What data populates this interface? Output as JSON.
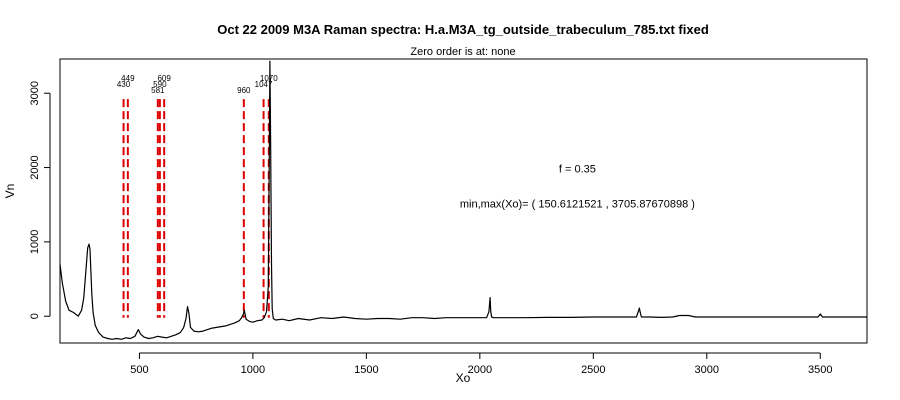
{
  "chart_data": {
    "type": "line",
    "title": "Oct 22 2009 M3A Raman spectra: H.a.M3A_tg_outside_trabeculum_785.txt fixed",
    "subtitle": "Zero order is at:  none",
    "xlabel": "Xo",
    "ylabel": "Vn",
    "xlim": [
      150,
      3706
    ],
    "ylim": [
      -360,
      3460
    ],
    "x_ticks": [
      500,
      1000,
      1500,
      2000,
      2500,
      3000,
      3500
    ],
    "y_ticks": [
      0,
      1000,
      2000,
      3000
    ],
    "grid": false,
    "line_color": "#000000",
    "peak_line_color": "#dd0000",
    "annotations": [
      {
        "text": "f =  0.35",
        "x": 2430,
        "y": 1930
      },
      {
        "text": "min,max(Xo)= ( 150.6121521  , 3705.87670898 )",
        "x": 2430,
        "y": 1460
      }
    ],
    "peaks": [
      {
        "x": 430,
        "label": "430"
      },
      {
        "x": 449,
        "label": "449"
      },
      {
        "x": 581,
        "label": "581"
      },
      {
        "x": 590,
        "label": "590"
      },
      {
        "x": 609,
        "label": "609"
      },
      {
        "x": 960,
        "label": "960"
      },
      {
        "x": 1047,
        "label": "1047"
      },
      {
        "x": 1070,
        "label": "1070"
      }
    ],
    "series": [
      {
        "x": [
          150,
          160,
          175,
          190,
          210,
          230,
          245,
          255,
          265,
          272,
          278,
          282,
          286,
          290,
          296,
          305,
          320,
          340,
          360,
          380,
          400,
          420,
          440,
          460,
          480,
          495,
          505,
          520,
          540,
          560,
          580,
          600,
          620,
          640,
          660,
          680,
          695,
          705,
          712,
          718,
          725,
          740,
          760,
          780,
          800,
          820,
          840,
          860,
          880,
          900,
          920,
          940,
          950,
          958,
          962,
          970,
          985,
          1000,
          1020,
          1040,
          1050,
          1060,
          1068,
          1072,
          1075,
          1078,
          1082,
          1085,
          1090,
          1100,
          1130,
          1160,
          1200,
          1250,
          1300,
          1350,
          1400,
          1450,
          1500,
          1550,
          1600,
          1650,
          1700,
          1750,
          1800,
          1850,
          1900,
          1950,
          2000,
          2030,
          2040,
          2045,
          2048,
          2052,
          2060,
          2100,
          2200,
          2300,
          2400,
          2500,
          2600,
          2690,
          2700,
          2703,
          2706,
          2712,
          2750,
          2800,
          2850,
          2880,
          2920,
          2950,
          3000,
          3100,
          3200,
          3300,
          3400,
          3490,
          3500,
          3510,
          3600,
          3706
        ],
        "y": [
          700,
          450,
          200,
          80,
          50,
          0,
          80,
          250,
          650,
          920,
          970,
          900,
          600,
          300,
          50,
          -120,
          -220,
          -280,
          -300,
          -310,
          -300,
          -310,
          -290,
          -300,
          -270,
          -180,
          -240,
          -280,
          -300,
          -290,
          -270,
          -280,
          -290,
          -270,
          -250,
          -220,
          -150,
          -30,
          130,
          40,
          -150,
          -200,
          -210,
          -200,
          -180,
          -160,
          -150,
          -140,
          -130,
          -110,
          -90,
          -60,
          -20,
          30,
          80,
          -40,
          -70,
          -80,
          -60,
          -50,
          -20,
          60,
          400,
          2000,
          3430,
          2400,
          700,
          100,
          -30,
          -50,
          -40,
          -60,
          -30,
          -50,
          -20,
          -30,
          -10,
          -30,
          -40,
          -30,
          -30,
          -40,
          -20,
          -20,
          -30,
          -20,
          -20,
          -20,
          -20,
          -20,
          60,
          250,
          70,
          -10,
          -20,
          -20,
          -20,
          -15,
          -15,
          -10,
          -10,
          -10,
          80,
          110,
          60,
          -10,
          -10,
          -15,
          -10,
          10,
          10,
          -10,
          -10,
          -10,
          -10,
          -10,
          -10,
          -10,
          30,
          -10,
          -10,
          -10
        ]
      }
    ]
  }
}
